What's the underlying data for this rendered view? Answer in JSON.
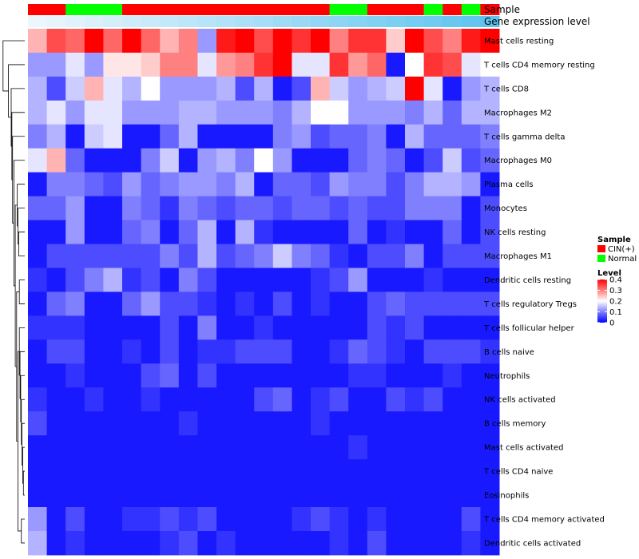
{
  "chart_data": {
    "type": "heatmap",
    "title": "",
    "annotation_tracks": {
      "sample": {
        "label": "Sample",
        "values": [
          "CIN(+)",
          "CIN(+)",
          "Normal",
          "Normal",
          "Normal",
          "CIN(+)",
          "CIN(+)",
          "CIN(+)",
          "CIN(+)",
          "CIN(+)",
          "CIN(+)",
          "CIN(+)",
          "CIN(+)",
          "CIN(+)",
          "CIN(+)",
          "CIN(+)",
          "Normal",
          "Normal",
          "CIN(+)",
          "CIN(+)",
          "CIN(+)",
          "Normal",
          "CIN(+)",
          "Normal",
          "CIN(+)"
        ]
      },
      "gene_expression": {
        "label": "Gene expression level",
        "values": [
          0.02,
          0.06,
          0.1,
          0.14,
          0.18,
          0.22,
          0.26,
          0.3,
          0.34,
          0.38,
          0.42,
          0.46,
          0.5,
          0.54,
          0.58,
          0.62,
          0.66,
          0.7,
          0.74,
          0.78,
          0.82,
          0.86,
          0.9,
          0.94,
          0.98
        ]
      }
    },
    "rows": [
      "Mast cells resting",
      "T cells CD4 memory resting",
      "T cells CD8",
      "Macrophages M2",
      "T cells gamma delta",
      "Macrophages M0",
      "Plasma cells",
      "Monocytes",
      "NK cells resting",
      "Macrophages M1",
      "Dendritic cells resting",
      "T cells regulatory  Tregs",
      "T cells follicular helper",
      "B cells naive",
      "Neutrophils",
      "NK cells activated",
      "B cells memory",
      "Mast cells activated",
      "T cells CD4 naive",
      "Eosinophils",
      "T cells CD4 memory activated",
      "Dendritic cells activated"
    ],
    "values": [
      [
        0.26,
        0.34,
        0.32,
        0.4,
        0.32,
        0.4,
        0.32,
        0.26,
        0.3,
        0.12,
        0.38,
        0.4,
        0.34,
        0.4,
        0.36,
        0.4,
        0.3,
        0.36,
        0.36,
        0.24,
        0.4,
        0.34,
        0.3,
        0.38,
        0.4
      ],
      [
        0.12,
        0.12,
        0.18,
        0.12,
        0.22,
        0.22,
        0.24,
        0.3,
        0.3,
        0.18,
        0.28,
        0.3,
        0.36,
        0.4,
        0.18,
        0.18,
        0.36,
        0.28,
        0.32,
        0.02,
        0.2,
        0.36,
        0.34,
        0.18,
        0.2
      ],
      [
        0.14,
        0.06,
        0.16,
        0.26,
        0.18,
        0.14,
        0.2,
        0.12,
        0.12,
        0.12,
        0.14,
        0.06,
        0.14,
        0.02,
        0.06,
        0.26,
        0.16,
        0.12,
        0.14,
        0.16,
        0.4,
        0.18,
        0.02,
        0.12,
        0.14
      ],
      [
        0.14,
        0.18,
        0.12,
        0.18,
        0.18,
        0.12,
        0.12,
        0.12,
        0.14,
        0.14,
        0.12,
        0.12,
        0.12,
        0.1,
        0.14,
        0.2,
        0.2,
        0.12,
        0.12,
        0.12,
        0.1,
        0.14,
        0.08,
        0.14,
        0.14
      ],
      [
        0.1,
        0.14,
        0.02,
        0.16,
        0.18,
        0.02,
        0.02,
        0.08,
        0.14,
        0.02,
        0.02,
        0.02,
        0.02,
        0.1,
        0.12,
        0.06,
        0.08,
        0.08,
        0.1,
        0.02,
        0.14,
        0.08,
        0.08,
        0.08,
        0.1
      ],
      [
        0.18,
        0.26,
        0.08,
        0.02,
        0.02,
        0.02,
        0.1,
        0.16,
        0.02,
        0.12,
        0.14,
        0.1,
        0.2,
        0.12,
        0.02,
        0.02,
        0.02,
        0.08,
        0.1,
        0.08,
        0.02,
        0.06,
        0.16,
        0.06,
        0.08
      ],
      [
        0.02,
        0.1,
        0.1,
        0.08,
        0.06,
        0.12,
        0.08,
        0.1,
        0.12,
        0.12,
        0.1,
        0.14,
        0.02,
        0.08,
        0.08,
        0.06,
        0.12,
        0.1,
        0.1,
        0.06,
        0.1,
        0.14,
        0.14,
        0.12,
        0.02
      ],
      [
        0.08,
        0.08,
        0.12,
        0.02,
        0.02,
        0.1,
        0.08,
        0.04,
        0.1,
        0.08,
        0.06,
        0.08,
        0.08,
        0.06,
        0.08,
        0.08,
        0.06,
        0.08,
        0.06,
        0.06,
        0.1,
        0.1,
        0.1,
        0.02,
        0.06
      ],
      [
        0.02,
        0.02,
        0.12,
        0.02,
        0.02,
        0.08,
        0.1,
        0.02,
        0.08,
        0.14,
        0.02,
        0.14,
        0.04,
        0.02,
        0.02,
        0.02,
        0.02,
        0.08,
        0.02,
        0.04,
        0.02,
        0.02,
        0.08,
        0.02,
        0.06
      ],
      [
        0.02,
        0.06,
        0.06,
        0.06,
        0.06,
        0.06,
        0.06,
        0.1,
        0.06,
        0.14,
        0.06,
        0.08,
        0.1,
        0.16,
        0.1,
        0.08,
        0.04,
        0.02,
        0.06,
        0.06,
        0.1,
        0.02,
        0.06,
        0.06,
        0.06
      ],
      [
        0.04,
        0.02,
        0.06,
        0.1,
        0.14,
        0.04,
        0.06,
        0.02,
        0.1,
        0.06,
        0.02,
        0.02,
        0.02,
        0.02,
        0.02,
        0.04,
        0.06,
        0.12,
        0.02,
        0.02,
        0.02,
        0.04,
        0.02,
        0.02,
        0.02
      ],
      [
        0.02,
        0.08,
        0.1,
        0.02,
        0.02,
        0.08,
        0.12,
        0.06,
        0.06,
        0.04,
        0.02,
        0.04,
        0.02,
        0.06,
        0.02,
        0.04,
        0.02,
        0.02,
        0.06,
        0.08,
        0.06,
        0.06,
        0.06,
        0.06,
        0.06
      ],
      [
        0.04,
        0.04,
        0.04,
        0.02,
        0.02,
        0.02,
        0.02,
        0.06,
        0.02,
        0.1,
        0.02,
        0.02,
        0.04,
        0.02,
        0.02,
        0.02,
        0.02,
        0.02,
        0.06,
        0.04,
        0.06,
        0.02,
        0.02,
        0.02,
        0.02
      ],
      [
        0.02,
        0.06,
        0.06,
        0.02,
        0.02,
        0.04,
        0.02,
        0.06,
        0.02,
        0.04,
        0.04,
        0.06,
        0.06,
        0.06,
        0.02,
        0.02,
        0.04,
        0.08,
        0.06,
        0.04,
        0.02,
        0.06,
        0.06,
        0.06,
        0.04
      ],
      [
        0.02,
        0.02,
        0.04,
        0.02,
        0.02,
        0.02,
        0.06,
        0.08,
        0.02,
        0.06,
        0.02,
        0.02,
        0.02,
        0.02,
        0.02,
        0.02,
        0.02,
        0.04,
        0.04,
        0.02,
        0.02,
        0.02,
        0.04,
        0.02,
        0.02
      ],
      [
        0.04,
        0.02,
        0.02,
        0.04,
        0.02,
        0.02,
        0.04,
        0.02,
        0.02,
        0.02,
        0.02,
        0.02,
        0.06,
        0.08,
        0.02,
        0.04,
        0.06,
        0.02,
        0.02,
        0.06,
        0.04,
        0.06,
        0.02,
        0.02,
        0.02
      ],
      [
        0.06,
        0.02,
        0.02,
        0.02,
        0.02,
        0.02,
        0.02,
        0.02,
        0.04,
        0.02,
        0.02,
        0.02,
        0.02,
        0.02,
        0.02,
        0.04,
        0.02,
        0.02,
        0.02,
        0.02,
        0.02,
        0.02,
        0.02,
        0.02,
        0.02
      ],
      [
        0.02,
        0.02,
        0.02,
        0.02,
        0.02,
        0.02,
        0.02,
        0.02,
        0.02,
        0.02,
        0.02,
        0.02,
        0.02,
        0.02,
        0.02,
        0.02,
        0.02,
        0.04,
        0.02,
        0.02,
        0.02,
        0.02,
        0.02,
        0.02,
        0.02
      ],
      [
        0.02,
        0.02,
        0.02,
        0.02,
        0.02,
        0.02,
        0.02,
        0.02,
        0.02,
        0.02,
        0.02,
        0.02,
        0.02,
        0.02,
        0.02,
        0.02,
        0.02,
        0.02,
        0.02,
        0.02,
        0.02,
        0.02,
        0.02,
        0.02,
        0.02
      ],
      [
        0.02,
        0.02,
        0.02,
        0.02,
        0.02,
        0.02,
        0.02,
        0.02,
        0.02,
        0.02,
        0.02,
        0.02,
        0.02,
        0.02,
        0.02,
        0.02,
        0.02,
        0.02,
        0.02,
        0.02,
        0.02,
        0.02,
        0.02,
        0.02,
        0.02
      ],
      [
        0.12,
        0.02,
        0.06,
        0.02,
        0.02,
        0.04,
        0.04,
        0.06,
        0.04,
        0.06,
        0.02,
        0.02,
        0.02,
        0.02,
        0.04,
        0.06,
        0.04,
        0.02,
        0.04,
        0.02,
        0.02,
        0.02,
        0.02,
        0.06,
        0.02
      ],
      [
        0.14,
        0.02,
        0.04,
        0.02,
        0.02,
        0.02,
        0.02,
        0.04,
        0.06,
        0.02,
        0.04,
        0.02,
        0.02,
        0.02,
        0.02,
        0.02,
        0.04,
        0.02,
        0.06,
        0.02,
        0.02,
        0.02,
        0.02,
        0.04,
        0.02
      ]
    ],
    "color_scale": {
      "title": "Level",
      "low": "#0000FF",
      "mid": "#FFFFFF",
      "high": "#FF0000",
      "range": [
        0,
        0.4
      ],
      "ticks": [
        {
          "value": 0.4,
          "label": "0.4"
        },
        {
          "value": 0.3,
          "label": "0.3"
        },
        {
          "value": 0.2,
          "label": "0.2"
        },
        {
          "value": 0.1,
          "label": "0.1"
        },
        {
          "value": 0,
          "label": "0"
        }
      ]
    },
    "sample_legend": {
      "title": "Sample",
      "items": [
        {
          "label": "CIN(+)",
          "color": "#FF0000"
        },
        {
          "label": "Normal",
          "color": "#00FF00"
        }
      ]
    },
    "gene_expression_colors": {
      "low": "#EFF8FD",
      "high": "#5BC3EF"
    },
    "dendrogram": {
      "present": true
    }
  }
}
